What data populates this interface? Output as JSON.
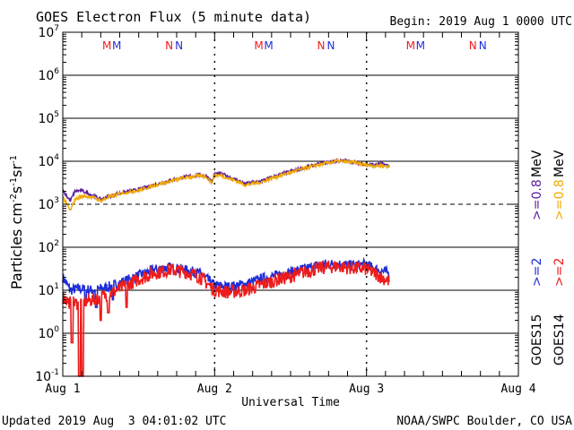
{
  "chart_data": {
    "type": "line",
    "title": "GOES Electron Flux (5 minute data)",
    "begin": "Begin: 2019 Aug 1 0000 UTC",
    "xlabel": "Universal Time",
    "ylabel": "Particles cm⁻²s⁻¹sr⁻¹",
    "ylabel_parts": [
      "Particles cm",
      "-2",
      "s",
      "-1",
      "sr",
      "-1"
    ],
    "y_scale": "log",
    "ylim": [
      0.1,
      10000000
    ],
    "y_tick_exponents": [
      "7",
      "6",
      "5",
      "4",
      "3",
      "2",
      "1",
      "0",
      "-1"
    ],
    "threshold_line": 1000,
    "x_unit": "days since 2019 Aug 1 0000 UTC",
    "xlim": [
      0,
      3
    ],
    "x_tick_labels": [
      "Aug 1",
      "Aug 2",
      "Aug 3",
      "Aug 4"
    ],
    "day_markers": [
      {
        "position": 0.32,
        "labels": [
          "M",
          "M"
        ]
      },
      {
        "position": 0.73,
        "labels": [
          "N",
          "N"
        ]
      },
      {
        "position": 1.32,
        "labels": [
          "M",
          "M"
        ]
      },
      {
        "position": 1.73,
        "labels": [
          "N",
          "N"
        ]
      },
      {
        "position": 2.32,
        "labels": [
          "M",
          "M"
        ]
      },
      {
        "position": 2.73,
        "labels": [
          "N",
          "N"
        ]
      }
    ],
    "series": [
      {
        "name": "GOES15 >=0.8 MeV",
        "color": "#5a1e99",
        "x": [
          0,
          0.05,
          0.08,
          0.12,
          0.15,
          0.2,
          0.25,
          0.3,
          0.35,
          0.4,
          0.5,
          0.6,
          0.7,
          0.8,
          0.9,
          0.95,
          0.98,
          1.0,
          1.05,
          1.1,
          1.15,
          1.2,
          1.3,
          1.4,
          1.5,
          1.6,
          1.7,
          1.8,
          1.9,
          2.0,
          2.05,
          2.1,
          2.15
        ],
        "values": [
          2000,
          1200,
          2000,
          2100,
          1900,
          1600,
          1300,
          1500,
          1700,
          1900,
          2200,
          2800,
          3500,
          4300,
          4800,
          4500,
          3300,
          5200,
          5000,
          4200,
          3600,
          3000,
          3400,
          4500,
          5800,
          7200,
          8800,
          10300,
          9800,
          8500,
          8300,
          8700,
          7800
        ]
      },
      {
        "name": "GOES14 >=0.8 MeV",
        "color": "#f2a900",
        "x": [
          0,
          0.02,
          0.05,
          0.08,
          0.12,
          0.15,
          0.2,
          0.25,
          0.3,
          0.35,
          0.4,
          0.5,
          0.6,
          0.7,
          0.8,
          0.9,
          0.95,
          0.98,
          1.0,
          1.05,
          1.1,
          1.15,
          1.2,
          1.3,
          1.4,
          1.5,
          1.6,
          1.7,
          1.8,
          1.9,
          2.0,
          2.05,
          2.1,
          2.15
        ],
        "values": [
          1500,
          1100,
          700,
          1300,
          1500,
          1550,
          1450,
          1200,
          1450,
          1650,
          1850,
          2100,
          2700,
          3400,
          4100,
          4600,
          4300,
          3100,
          4800,
          4600,
          3900,
          3400,
          2800,
          3200,
          4300,
          5500,
          7000,
          8500,
          10000,
          9500,
          8200,
          7800,
          8000,
          7300
        ]
      },
      {
        "name": "GOES15 >=2 MeV",
        "color": "#1f2ed8",
        "x": [
          0,
          0.05,
          0.1,
          0.2,
          0.3,
          0.4,
          0.5,
          0.6,
          0.7,
          0.8,
          0.9,
          1.0,
          1.1,
          1.2,
          1.3,
          1.4,
          1.5,
          1.6,
          1.7,
          1.8,
          1.9,
          2.0,
          2.05,
          2.1,
          2.15
        ],
        "values": [
          20,
          10,
          11,
          10,
          12,
          16,
          22,
          30,
          34,
          30,
          25,
          13,
          12,
          14,
          18,
          22,
          26,
          32,
          40,
          41,
          38,
          40,
          32,
          28,
          25
        ]
      },
      {
        "name": "GOES14 >=2 MeV",
        "color": "#ee1c1c",
        "x": [
          0,
          0.05,
          0.1,
          0.2,
          0.3,
          0.4,
          0.5,
          0.6,
          0.7,
          0.8,
          0.9,
          1.0,
          1.1,
          1.2,
          1.3,
          1.4,
          1.5,
          1.6,
          1.7,
          1.8,
          1.9,
          2.0,
          2.05,
          2.1,
          2.15
        ],
        "values": [
          7,
          5,
          5,
          6,
          8,
          12,
          18,
          25,
          30,
          27,
          21,
          10,
          9,
          10,
          13,
          17,
          21,
          27,
          33,
          36,
          33,
          31,
          25,
          20,
          16
        ]
      }
    ],
    "dips": [
      {
        "series": 3,
        "x": [
          0.06,
          0.11,
          0.13,
          0.25,
          0.3,
          0.42
        ],
        "values": [
          0.6,
          0.1,
          0.1,
          2,
          3,
          4
        ]
      },
      {
        "series": 2,
        "x": [
          0.15,
          0.22,
          0.33
        ],
        "values": [
          5,
          4,
          6
        ]
      }
    ],
    "legend": {
      "GOES15_label": "GOES15",
      "GOES14_label": "GOES14",
      "ge2_label": ">=2",
      "ge08_label": ">=0.8",
      "mev_label": "MeV"
    },
    "updated": "Updated 2019 Aug  3 04:01:02 UTC",
    "source": "NOAA/SWPC Boulder, CO USA"
  },
  "colors": {
    "goes15_hi": "#5a1e99",
    "goes14_hi": "#f2a900",
    "goes15_lo": "#1f2ed8",
    "goes14_lo": "#ee1c1c"
  }
}
